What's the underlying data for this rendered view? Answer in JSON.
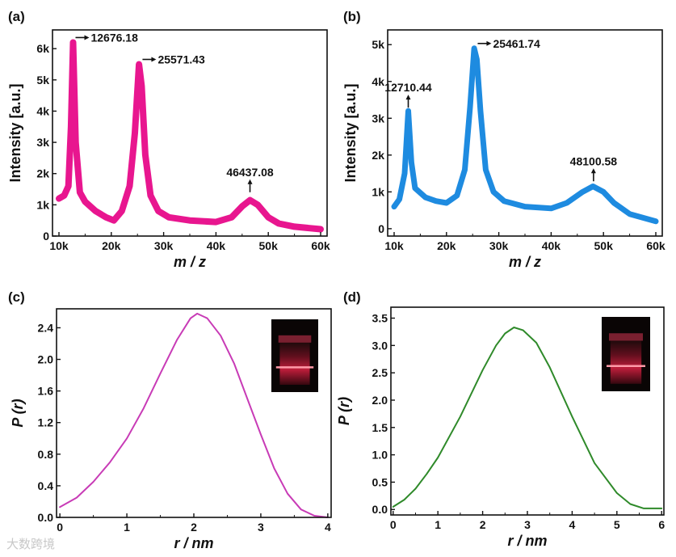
{
  "watermark": "大数跨境",
  "chart_data": [
    {
      "panel": "(a)",
      "type": "line",
      "color": "#e8168f",
      "xlabel": "m / z",
      "ylabel": "Intensity [a.u.]",
      "xlim": [
        10,
        60
      ],
      "ylim": [
        0,
        6.6
      ],
      "xticks": [
        "10k",
        "20k",
        "30k",
        "40k",
        "50k",
        "60k"
      ],
      "xtick_values": [
        10,
        20,
        30,
        40,
        50,
        60
      ],
      "yticks": [
        "0",
        "1k",
        "2k",
        "3k",
        "4k",
        "5k",
        "6k"
      ],
      "ytick_values": [
        0,
        1,
        2,
        3,
        4,
        5,
        6
      ],
      "x": [
        10,
        11,
        11.8,
        12.3,
        12.7,
        13.2,
        14,
        15,
        17,
        19,
        20.5,
        22,
        23.5,
        24.5,
        25.3,
        25.8,
        26.5,
        27.5,
        29,
        31,
        35,
        40,
        43,
        45,
        46.5,
        48,
        50,
        52,
        55,
        60
      ],
      "y": [
        1.2,
        1.3,
        1.6,
        3.5,
        6.2,
        3.0,
        1.4,
        1.1,
        0.8,
        0.6,
        0.5,
        0.8,
        1.6,
        3.3,
        5.5,
        4.8,
        2.6,
        1.3,
        0.8,
        0.6,
        0.5,
        0.45,
        0.6,
        0.95,
        1.15,
        1.0,
        0.6,
        0.4,
        0.3,
        0.22
      ],
      "annotations": [
        {
          "text": "12676.18",
          "x": 12.7,
          "y": 6.2,
          "arrow": "right"
        },
        {
          "text": "25571.43",
          "x": 25.5,
          "y": 5.5,
          "arrow": "right"
        },
        {
          "text": "46437.08",
          "x": 46.5,
          "y": 1.3,
          "arrow": "up"
        }
      ]
    },
    {
      "panel": "(b)",
      "type": "line",
      "color": "#1e8be0",
      "xlabel": "m / z",
      "ylabel": "Intensity [a.u.]",
      "xlim": [
        10,
        60
      ],
      "ylim": [
        -0.2,
        5.4
      ],
      "xticks": [
        "10k",
        "20k",
        "30k",
        "40k",
        "50k",
        "60k"
      ],
      "xtick_values": [
        10,
        20,
        30,
        40,
        50,
        60
      ],
      "yticks": [
        "0",
        "1k",
        "2k",
        "3k",
        "4k",
        "5k"
      ],
      "ytick_values": [
        0,
        1,
        2,
        3,
        4,
        5
      ],
      "x": [
        10,
        11,
        12,
        12.7,
        13.3,
        14,
        16,
        18,
        20,
        22,
        23.5,
        24.5,
        25.3,
        25.8,
        26.5,
        27.5,
        29,
        31,
        35,
        40,
        43,
        46,
        48,
        50,
        52,
        55,
        60
      ],
      "y": [
        0.6,
        0.8,
        1.5,
        3.2,
        1.8,
        1.1,
        0.85,
        0.75,
        0.7,
        0.9,
        1.6,
        3.3,
        4.9,
        4.6,
        3.2,
        1.6,
        1.0,
        0.75,
        0.6,
        0.55,
        0.7,
        1.0,
        1.15,
        1.0,
        0.7,
        0.4,
        0.2
      ],
      "annotations": [
        {
          "text": "12710.44",
          "x": 12.7,
          "y": 3.2,
          "arrow": "up"
        },
        {
          "text": "25461.74",
          "x": 25.5,
          "y": 4.9,
          "arrow": "right"
        },
        {
          "text": "48100.58",
          "x": 48.1,
          "y": 1.2,
          "arrow": "up"
        }
      ]
    },
    {
      "panel": "(c)",
      "type": "line",
      "color": "#c83bb6",
      "xlabel": "r / nm",
      "ylabel": "P (r)",
      "xlim": [
        -0.05,
        4.05
      ],
      "ylim": [
        0,
        2.64
      ],
      "xticks": [
        "0",
        "1",
        "2",
        "3",
        "4"
      ],
      "xtick_values": [
        0,
        1,
        2,
        3,
        4
      ],
      "yticks": [
        "0.0",
        "0.4",
        "0.8",
        "1.2",
        "1.6",
        "2.0",
        "2.4"
      ],
      "ytick_values": [
        0,
        0.4,
        0.8,
        1.2,
        1.6,
        2.0,
        2.4
      ],
      "x": [
        0,
        0.25,
        0.5,
        0.75,
        1,
        1.25,
        1.5,
        1.75,
        1.95,
        2.05,
        2.2,
        2.4,
        2.6,
        2.8,
        3,
        3.2,
        3.4,
        3.6,
        3.8,
        4
      ],
      "y": [
        0.13,
        0.25,
        0.45,
        0.7,
        1.0,
        1.38,
        1.82,
        2.25,
        2.52,
        2.58,
        2.52,
        2.3,
        1.95,
        1.5,
        1.05,
        0.62,
        0.3,
        0.1,
        0.02,
        0
      ],
      "inset": "photo"
    },
    {
      "panel": "(d)",
      "type": "line",
      "color": "#2f8a2a",
      "xlabel": "r / nm",
      "ylabel": "P (r)",
      "xlim": [
        -0.05,
        6.05
      ],
      "ylim": [
        -0.1,
        3.7
      ],
      "xticks": [
        "0",
        "1",
        "2",
        "3",
        "4",
        "5",
        "6"
      ],
      "xtick_values": [
        0,
        1,
        2,
        3,
        4,
        5,
        6
      ],
      "yticks": [
        "0.0",
        "0.5",
        "1.0",
        "1.5",
        "2.0",
        "2.5",
        "3.0",
        "3.5"
      ],
      "ytick_values": [
        0,
        0.5,
        1,
        1.5,
        2,
        2.5,
        3,
        3.5
      ],
      "x": [
        0,
        0.25,
        0.5,
        0.75,
        1,
        1.5,
        2,
        2.3,
        2.5,
        2.7,
        2.9,
        3.2,
        3.5,
        4,
        4.5,
        5,
        5.3,
        5.6,
        6
      ],
      "y": [
        0.05,
        0.18,
        0.38,
        0.65,
        0.95,
        1.7,
        2.55,
        3.0,
        3.22,
        3.33,
        3.28,
        3.05,
        2.6,
        1.7,
        0.85,
        0.3,
        0.1,
        0.02,
        0.02
      ],
      "inset": "photo"
    }
  ]
}
